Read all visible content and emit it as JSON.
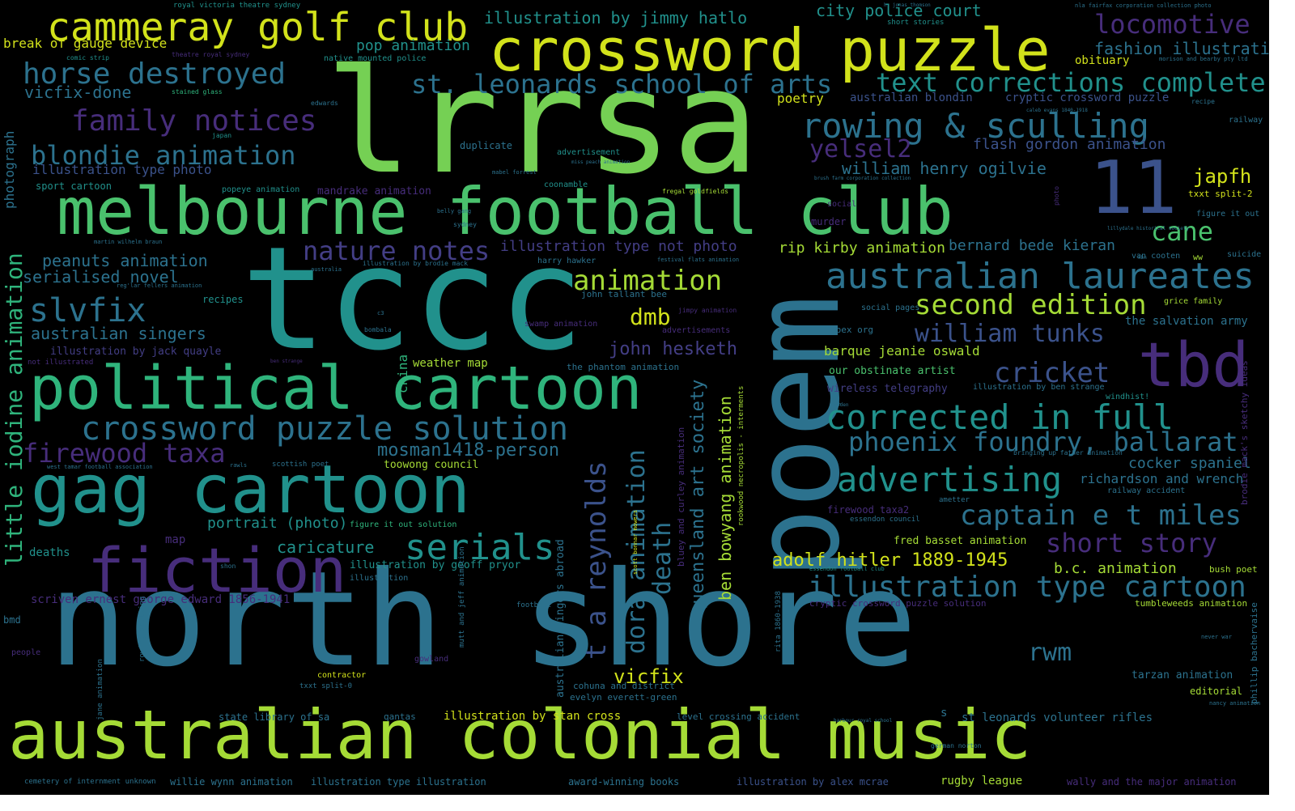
{
  "palette": {
    "background": "#000000",
    "yellow": "#d2e21b",
    "yellow_green": "#a5db36",
    "light_green": "#75d054",
    "green": "#4ac16d",
    "teal_green": "#2fb47c",
    "teal": "#21918c",
    "blue_teal": "#2c728e",
    "blue": "#3b528b",
    "indigo": "#433e85",
    "purple": "#472d7b",
    "dark_purple": "#440154"
  },
  "words": [
    {
      "text": "north shore",
      "color": "#2c728e"
    },
    {
      "text": "lrrsa",
      "color": "#75d054"
    },
    {
      "text": "tccc",
      "color": "#21918c"
    },
    {
      "text": "poem",
      "color": "#2c728e"
    },
    {
      "text": "australian colonial music",
      "color": "#a5db36"
    },
    {
      "text": "melbourne football club",
      "color": "#4ac16d"
    },
    {
      "text": "gag cartoon",
      "color": "#21918c"
    },
    {
      "text": "political cartoon",
      "color": "#2fb47c"
    },
    {
      "text": "crossword puzzle",
      "color": "#d2e21b"
    },
    {
      "text": "fiction",
      "color": "#472d7b"
    },
    {
      "text": "tbd",
      "color": "#472d7b"
    },
    {
      "text": "11",
      "color": "#3b528b"
    },
    {
      "text": "cammeray golf club",
      "color": "#d2e21b"
    },
    {
      "text": "crossword puzzle solution",
      "color": "#2c728e"
    },
    {
      "text": "australian laureates",
      "color": "#2c728e"
    },
    {
      "text": "corrected in full",
      "color": "#21918c"
    },
    {
      "text": "rowing & sculling",
      "color": "#2c728e"
    },
    {
      "text": "serials",
      "color": "#21918c"
    },
    {
      "text": "advertising",
      "color": "#21918c"
    },
    {
      "text": "horse destroyed",
      "color": "#2c728e"
    },
    {
      "text": "illustration type cartoon",
      "color": "#2c728e"
    },
    {
      "text": "st. leonards school of arts",
      "color": "#2c728e"
    },
    {
      "text": "text corrections complete",
      "color": "#21918c"
    },
    {
      "text": "family notices",
      "color": "#472d7b"
    },
    {
      "text": "blondie animation",
      "color": "#2c728e"
    },
    {
      "text": "slvfix",
      "color": "#2c728e"
    },
    {
      "text": "animation",
      "color": "#a5db36"
    },
    {
      "text": "second edition",
      "color": "#a5db36"
    },
    {
      "text": "captain e t miles",
      "color": "#2c728e"
    },
    {
      "text": "phoenix foundry, ballarat",
      "color": "#2c728e"
    },
    {
      "text": "short story",
      "color": "#472d7b"
    },
    {
      "text": "cricket",
      "color": "#3b528b"
    },
    {
      "text": "firewood taxa",
      "color": "#472d7b"
    },
    {
      "text": "nature notes",
      "color": "#433e85"
    },
    {
      "text": "locomotive",
      "color": "#472d7b"
    },
    {
      "text": "william tunks",
      "color": "#3b528b"
    },
    {
      "text": "yelsel2",
      "color": "#472d7b"
    },
    {
      "text": "cane",
      "color": "#4ac16d"
    },
    {
      "text": "dmb",
      "color": "#d2e21b"
    },
    {
      "text": "rwm",
      "color": "#2c728e"
    },
    {
      "text": "vicfix",
      "color": "#d2e21b"
    },
    {
      "text": "japfh",
      "color": "#d2e21b"
    },
    {
      "text": "t a reynolds",
      "color": "#3b528b"
    },
    {
      "text": "dora animation",
      "color": "#2c728e"
    },
    {
      "text": "death",
      "color": "#2c728e"
    },
    {
      "text": "little iodine animation",
      "color": "#2fb47c"
    },
    {
      "text": "queensland art society",
      "color": "#2c728e"
    },
    {
      "text": "ben bowyang animation",
      "color": "#a5db36"
    },
    {
      "text": "john hesketh",
      "color": "#433e85"
    },
    {
      "text": "mosman1418-person",
      "color": "#2c728e"
    },
    {
      "text": "peanuts animation",
      "color": "#2c728e"
    },
    {
      "text": "australian singers",
      "color": "#2c728e"
    },
    {
      "text": "serialised novel",
      "color": "#2c728e"
    },
    {
      "text": "adolf hitler 1889-1945",
      "color": "#d2e21b"
    },
    {
      "text": "caricature",
      "color": "#21918c"
    },
    {
      "text": "portrait (photo)",
      "color": "#21918c"
    },
    {
      "text": "illustration by jimmy hatlo",
      "color": "#21918c"
    },
    {
      "text": "city police court",
      "color": "#21918c"
    },
    {
      "text": "fashion illustration",
      "color": "#2c728e"
    },
    {
      "text": "william henry ogilvie",
      "color": "#2c728e"
    },
    {
      "text": "flash gordon animation",
      "color": "#3b528b"
    },
    {
      "text": "bernard bede kieran",
      "color": "#2c728e"
    },
    {
      "text": "rip kirby animation",
      "color": "#a5db36"
    },
    {
      "text": "illustration type not photo",
      "color": "#433e85"
    },
    {
      "text": "richardson and wrench",
      "color": "#2c728e"
    },
    {
      "text": "cocker spaniel",
      "color": "#2c728e"
    },
    {
      "text": "b.c. animation",
      "color": "#a5db36"
    },
    {
      "text": "break of gauge device",
      "color": "#d2e21b"
    },
    {
      "text": "pop animation",
      "color": "#21918c"
    },
    {
      "text": "vicfix-done",
      "color": "#2c728e"
    },
    {
      "text": "illustration type photo",
      "color": "#3b528b"
    },
    {
      "text": "photograph",
      "color": "#2c728e"
    },
    {
      "text": "obituary",
      "color": "#d2e21b"
    },
    {
      "text": "poetry",
      "color": "#d2e21b"
    },
    {
      "text": "barque jeanie oswald",
      "color": "#a5db36"
    },
    {
      "text": "the salvation army",
      "color": "#2c728e"
    },
    {
      "text": "australian blondin",
      "color": "#3b528b"
    },
    {
      "text": "cryptic crossword puzzle",
      "color": "#3b528b"
    },
    {
      "text": "st leonards volunteer rifles",
      "color": "#2c728e"
    },
    {
      "text": "illustration by stan cross",
      "color": "#d2e21b"
    },
    {
      "text": "state library of sa",
      "color": "#2c728e"
    },
    {
      "text": "willie wynn animation",
      "color": "#2c728e"
    },
    {
      "text": "illustration type illustration",
      "color": "#2c728e"
    },
    {
      "text": "award-winning books",
      "color": "#2c728e"
    },
    {
      "text": "illustration by alex mcrae",
      "color": "#3b528b"
    },
    {
      "text": "rugby league",
      "color": "#a5db36"
    },
    {
      "text": "wally and the major animation",
      "color": "#472d7b"
    },
    {
      "text": "scriven ernest george edward 1856-1941",
      "color": "#472d7b"
    },
    {
      "text": "illustration by jack quayle",
      "color": "#433e85"
    },
    {
      "text": "illustration by geoff pryor",
      "color": "#21918c"
    },
    {
      "text": "weather map",
      "color": "#a5db36"
    },
    {
      "text": "the phantom animation",
      "color": "#2c728e"
    },
    {
      "text": "toowong council",
      "color": "#a5db36"
    },
    {
      "text": "mandrake animation",
      "color": "#472d7b"
    },
    {
      "text": "our obstinate artist",
      "color": "#4ac16d"
    },
    {
      "text": "wireless telegraphy",
      "color": "#433e85"
    },
    {
      "text": "fred basset animation",
      "color": "#a5db36"
    },
    {
      "text": "firewood taxa2",
      "color": "#472d7b"
    },
    {
      "text": "tarzan animation",
      "color": "#2c728e"
    },
    {
      "text": "editorial",
      "color": "#a5db36"
    },
    {
      "text": "tumbleweeds animation",
      "color": "#a5db36"
    },
    {
      "text": "cryptic crossword puzzle solution",
      "color": "#472d7b"
    },
    {
      "text": "level crossing accident",
      "color": "#2c728e"
    },
    {
      "text": "qantas",
      "color": "#2c728e"
    },
    {
      "text": "australian singers abroad",
      "color": "#2c728e"
    },
    {
      "text": "evelyn everett-green",
      "color": "#2c728e"
    },
    {
      "text": "cohuna and district",
      "color": "#2c728e"
    },
    {
      "text": "john tallant bee",
      "color": "#2c728e"
    },
    {
      "text": "swamp animation",
      "color": "#472d7b"
    },
    {
      "text": "recipes",
      "color": "#21918c"
    },
    {
      "text": "china",
      "color": "#2fb47c"
    },
    {
      "text": "duplicate",
      "color": "#2c728e"
    },
    {
      "text": "advertisement",
      "color": "#21918c"
    },
    {
      "text": "popeye animation",
      "color": "#21918c"
    },
    {
      "text": "sport cartoon",
      "color": "#21918c"
    },
    {
      "text": "native mounted police",
      "color": "#21918c"
    },
    {
      "text": "comic strip",
      "color": "#21918c"
    },
    {
      "text": "theatre royal sydney",
      "color": "#472d7b"
    },
    {
      "text": "royal victoria theatre sydney",
      "color": "#21918c"
    },
    {
      "text": "short stories",
      "color": "#21918c"
    },
    {
      "text": "stained glass",
      "color": "#2fb47c"
    },
    {
      "text": "edwards",
      "color": "#2c728e"
    },
    {
      "text": "japan",
      "color": "#21918c"
    },
    {
      "text": "coonamble",
      "color": "#21918c"
    },
    {
      "text": "fregal goldfields",
      "color": "#a5db36"
    },
    {
      "text": "harry hawker",
      "color": "#2c728e"
    },
    {
      "text": "murder",
      "color": "#472d7b"
    },
    {
      "text": "social",
      "color": "#472d7b"
    },
    {
      "text": "apex org",
      "color": "#2c728e"
    },
    {
      "text": "social pages",
      "color": "#2c728e"
    },
    {
      "text": "advertisements",
      "color": "#472d7b"
    },
    {
      "text": "jimpy animation",
      "color": "#472d7b"
    },
    {
      "text": "van cooten",
      "color": "#2c728e"
    },
    {
      "text": "suicide",
      "color": "#2c728e"
    },
    {
      "text": "railway",
      "color": "#2c728e"
    },
    {
      "text": "figure it out",
      "color": "#2c728e"
    },
    {
      "text": "txxt split-2",
      "color": "#d2e21b"
    },
    {
      "text": "railway accident",
      "color": "#2c728e"
    },
    {
      "text": "bush poet",
      "color": "#a5db36"
    },
    {
      "text": "rita 1860-1938",
      "color": "#2c728e"
    },
    {
      "text": "essendon council",
      "color": "#2c728e"
    },
    {
      "text": "grice family",
      "color": "#a5db36"
    },
    {
      "text": "windhist!",
      "color": "#21918c"
    },
    {
      "text": "essendon football club",
      "color": "#21918c"
    },
    {
      "text": "bringing up father animation",
      "color": "#2c728e"
    },
    {
      "text": "deaths",
      "color": "#21918c"
    },
    {
      "text": "map",
      "color": "#472d7b"
    },
    {
      "text": "figure it out solution",
      "color": "#2fb47c"
    },
    {
      "text": "illustration",
      "color": "#2c728e"
    },
    {
      "text": "football",
      "color": "#2c728e"
    },
    {
      "text": "bmd",
      "color": "#2c728e"
    },
    {
      "text": "people",
      "color": "#472d7b"
    },
    {
      "text": "contractor",
      "color": "#d2e21b"
    },
    {
      "text": "txxt split-0",
      "color": "#2c728e"
    },
    {
      "text": "gowland",
      "color": "#472d7b"
    },
    {
      "text": "scottish poet",
      "color": "#2c728e"
    },
    {
      "text": "rawls",
      "color": "#2c728e"
    },
    {
      "text": "bombala",
      "color": "#2c728e"
    },
    {
      "text": "s",
      "color": "#2c728e"
    },
    {
      "text": "ww",
      "color": "#a5db36"
    },
    {
      "text": "mutt and jeff animation",
      "color": "#2c728e"
    },
    {
      "text": "jane animation",
      "color": "#2c728e"
    },
    {
      "text": "rowing sculling",
      "color": "#2c728e"
    },
    {
      "text": "bluey and curley animation",
      "color": "#472d7b"
    },
    {
      "text": "rookwood necropolis - interments",
      "color": "#a5db36"
    },
    {
      "text": "scott bonnar mowers",
      "color": "#d2e21b"
    },
    {
      "text": "brodie mack's sketchy ideas",
      "color": "#472d7b"
    },
    {
      "text": "phillip bachervaise",
      "color": "#2c728e"
    },
    {
      "text": "not illustrated",
      "color": "#472d7b"
    },
    {
      "text": "ben strange",
      "color": "#472d7b"
    },
    {
      "text": "illustration by ben strange",
      "color": "#2c728e"
    },
    {
      "text": "ametter",
      "color": "#2c728e"
    },
    {
      "text": "cemetery of internment unknown",
      "color": "#2c728e"
    },
    {
      "text": "west tamar football association",
      "color": "#2c728e"
    },
    {
      "text": "illustration by brodie mack",
      "color": "#2c728e"
    },
    {
      "text": "c3",
      "color": "#2c728e"
    },
    {
      "text": "martin wilhelm braun",
      "color": "#2c728e"
    },
    {
      "text": "sydney",
      "color": "#2c728e"
    },
    {
      "text": "reg'lar fellers animation",
      "color": "#2c728e"
    },
    {
      "text": "australia",
      "color": "#2c728e"
    },
    {
      "text": "festival flats animation",
      "color": "#2c728e"
    },
    {
      "text": "nla fairfax corporation collection photo",
      "color": "#2c728e"
    },
    {
      "text": "morison and bearby pty ltd",
      "color": "#2c728e"
    },
    {
      "text": "recipe",
      "color": "#2c728e"
    },
    {
      "text": "caleb evans 1840-1918",
      "color": "#2c728e"
    },
    {
      "text": "nancy animation",
      "color": "#2c728e"
    },
    {
      "text": "german norton",
      "color": "#2c728e"
    },
    {
      "text": "shon",
      "color": "#2c728e"
    },
    {
      "text": "eden",
      "color": "#2c728e"
    },
    {
      "text": "mabel forrest",
      "color": "#2c728e"
    },
    {
      "text": "miss peach animation",
      "color": "#2c728e"
    },
    {
      "text": "brush farm corporation collection",
      "color": "#2c728e"
    },
    {
      "text": "belly gang",
      "color": "#2c728e"
    },
    {
      "text": "lillydale historical society",
      "color": "#2c728e"
    },
    {
      "text": "harbour royal school",
      "color": "#2c728e"
    },
    {
      "text": "ooh",
      "color": "#2c728e"
    },
    {
      "text": "kbn",
      "color": "#2c728e"
    },
    {
      "text": "photo",
      "color": "#472d7b"
    },
    {
      "text": "never war",
      "color": "#2c728e"
    },
    {
      "text": "h. jonas thomson",
      "color": "#2c728e"
    }
  ]
}
